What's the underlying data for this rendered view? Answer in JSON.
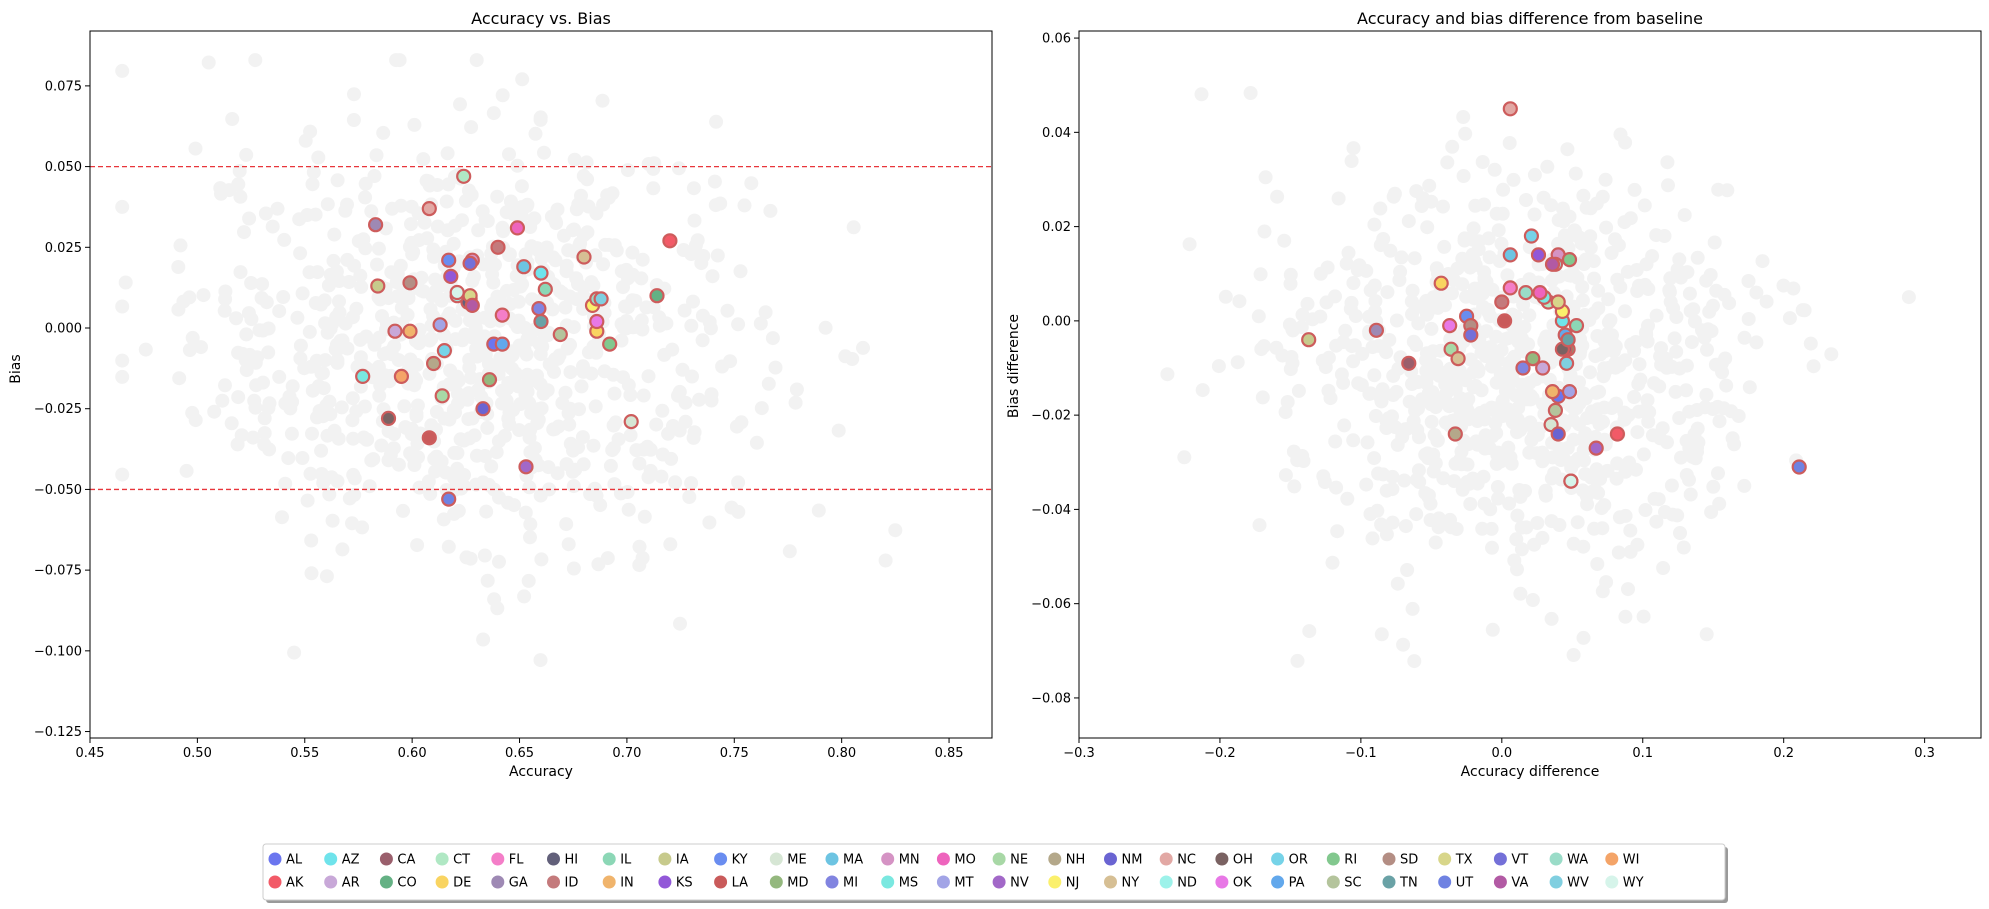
{
  "chart_data": [
    {
      "type": "scatter",
      "title": "Accuracy vs. Bias",
      "xlabel": "Accuracy",
      "ylabel": "Bias",
      "xlim": [
        0.45,
        0.87
      ],
      "ylim": [
        -0.127,
        0.092
      ],
      "xticks": [
        0.45,
        0.5,
        0.55,
        0.6,
        0.65,
        0.7,
        0.75,
        0.8,
        0.85
      ],
      "xtick_labels": [
        "0.45",
        "0.50",
        "0.55",
        "0.60",
        "0.65",
        "0.70",
        "0.75",
        "0.80",
        "0.85"
      ],
      "yticks": [
        -0.125,
        -0.1,
        -0.075,
        -0.05,
        -0.025,
        0.0,
        0.025,
        0.05,
        0.075
      ],
      "ytick_labels": [
        "−0.125",
        "−0.100",
        "−0.075",
        "−0.050",
        "−0.025",
        "0.000",
        "0.025",
        "0.050",
        "0.075"
      ],
      "hlines": [
        0.05,
        -0.05
      ],
      "hline_color": "#e8363b",
      "background_points": {
        "color": "#f2f2f2",
        "count": 900,
        "x_center": 0.63,
        "x_spread": 0.065,
        "y_center": -0.005,
        "y_spread": 0.032,
        "x_range": [
          0.465,
          0.855
        ],
        "y_range": [
          -0.118,
          0.083
        ]
      },
      "series": [
        {
          "state": "AL",
          "x": 0.638,
          "y": -0.005
        },
        {
          "state": "AK",
          "x": 0.72,
          "y": 0.027
        },
        {
          "state": "AZ",
          "x": 0.66,
          "y": 0.017
        },
        {
          "state": "AR",
          "x": 0.592,
          "y": -0.001
        },
        {
          "state": "CA",
          "x": 0.627,
          "y": 0.009
        },
        {
          "state": "CO",
          "x": 0.714,
          "y": 0.01
        },
        {
          "state": "CT",
          "x": 0.624,
          "y": 0.047
        },
        {
          "state": "DE",
          "x": 0.686,
          "y": -0.001
        },
        {
          "state": "FL",
          "x": 0.642,
          "y": 0.004
        },
        {
          "state": "GA",
          "x": 0.583,
          "y": 0.032
        },
        {
          "state": "HI",
          "x": 0.626,
          "y": 0.008
        },
        {
          "state": "ID",
          "x": 0.64,
          "y": 0.025
        },
        {
          "state": "IN",
          "x": 0.599,
          "y": -0.001
        },
        {
          "state": "IL",
          "x": 0.662,
          "y": 0.012
        },
        {
          "state": "IA",
          "x": 0.584,
          "y": 0.013
        },
        {
          "state": "KS",
          "x": 0.618,
          "y": 0.016
        },
        {
          "state": "KY",
          "x": 0.617,
          "y": 0.021
        },
        {
          "state": "LA",
          "x": 0.608,
          "y": -0.034
        },
        {
          "state": "ME",
          "x": 0.702,
          "y": -0.029
        },
        {
          "state": "MD",
          "x": 0.636,
          "y": -0.016
        },
        {
          "state": "MA",
          "x": 0.652,
          "y": 0.019
        },
        {
          "state": "MI",
          "x": 0.659,
          "y": 0.006
        },
        {
          "state": "MN",
          "x": 0.628,
          "y": 0.021
        },
        {
          "state": "MS",
          "x": 0.577,
          "y": -0.015
        },
        {
          "state": "MO",
          "x": 0.649,
          "y": 0.031
        },
        {
          "state": "MT",
          "x": 0.613,
          "y": 0.001
        },
        {
          "state": "NE",
          "x": 0.614,
          "y": -0.021
        },
        {
          "state": "NV",
          "x": 0.653,
          "y": -0.043
        },
        {
          "state": "NH",
          "x": 0.61,
          "y": -0.011
        },
        {
          "state": "NJ",
          "x": 0.684,
          "y": 0.007
        },
        {
          "state": "NM",
          "x": 0.633,
          "y": -0.025
        },
        {
          "state": "NY",
          "x": 0.68,
          "y": 0.022
        },
        {
          "state": "NC",
          "x": 0.608,
          "y": 0.037
        },
        {
          "state": "ND",
          "x": 0.621,
          "y": 0.01
        },
        {
          "state": "OH",
          "x": 0.589,
          "y": -0.028
        },
        {
          "state": "OK",
          "x": 0.686,
          "y": 0.002
        },
        {
          "state": "OR",
          "x": 0.615,
          "y": -0.007
        },
        {
          "state": "PA",
          "x": 0.642,
          "y": -0.005
        },
        {
          "state": "RI",
          "x": 0.692,
          "y": -0.005
        },
        {
          "state": "SC",
          "x": 0.669,
          "y": -0.002
        },
        {
          "state": "SD",
          "x": 0.599,
          "y": 0.014
        },
        {
          "state": "TN",
          "x": 0.66,
          "y": 0.002
        },
        {
          "state": "TX",
          "x": 0.627,
          "y": 0.01
        },
        {
          "state": "UT",
          "x": 0.617,
          "y": -0.053
        },
        {
          "state": "VT",
          "x": 0.627,
          "y": 0.02
        },
        {
          "state": "VA",
          "x": 0.628,
          "y": 0.007
        },
        {
          "state": "WA",
          "x": 0.686,
          "y": 0.009
        },
        {
          "state": "WV",
          "x": 0.688,
          "y": 0.009
        },
        {
          "state": "WI",
          "x": 0.595,
          "y": -0.015
        },
        {
          "state": "WY",
          "x": 0.621,
          "y": 0.011
        }
      ]
    },
    {
      "type": "scatter",
      "title": "Accuracy and bias difference from baseline",
      "xlabel": "Accuracy difference",
      "ylabel": "Bias difference",
      "xlim": [
        -0.3,
        0.34
      ],
      "ylim": [
        -0.0885,
        0.0615
      ],
      "xticks": [
        -0.3,
        -0.2,
        -0.1,
        0.0,
        0.1,
        0.2,
        0.3
      ],
      "xtick_labels": [
        "−0.3",
        "−0.2",
        "−0.1",
        "0.0",
        "0.1",
        "0.2",
        "0.3"
      ],
      "yticks": [
        -0.08,
        -0.06,
        -0.04,
        -0.02,
        0.0,
        0.02,
        0.04,
        0.06
      ],
      "ytick_labels": [
        "−0.08",
        "−0.06",
        "−0.04",
        "−0.02",
        "0.00",
        "0.02",
        "0.04",
        "0.06"
      ],
      "background_points": {
        "color": "#f2f2f2",
        "count": 900,
        "x_center": 0.01,
        "x_spread": 0.085,
        "y_center": -0.012,
        "y_spread": 0.021,
        "x_range": [
          -0.28,
          0.31
        ],
        "y_range": [
          -0.082,
          0.055
        ]
      },
      "series": [
        {
          "state": "AL",
          "x": 0.04,
          "y": -0.016
        },
        {
          "state": "AK",
          "x": 0.082,
          "y": -0.024
        },
        {
          "state": "AZ",
          "x": 0.043,
          "y": 0.0
        },
        {
          "state": "AR",
          "x": 0.029,
          "y": -0.01
        },
        {
          "state": "CA",
          "x": -0.066,
          "y": -0.009
        },
        {
          "state": "CO",
          "x": 0.047,
          "y": -0.006
        },
        {
          "state": "CT",
          "x": 0.033,
          "y": 0.004
        },
        {
          "state": "DE",
          "x": -0.043,
          "y": 0.008
        },
        {
          "state": "FL",
          "x": 0.006,
          "y": 0.007
        },
        {
          "state": "GA",
          "x": -0.089,
          "y": -0.002
        },
        {
          "state": "HI",
          "x": 0.045,
          "y": -0.006
        },
        {
          "state": "ID",
          "x": 0.0,
          "y": 0.004
        },
        {
          "state": "IN",
          "x": 0.036,
          "y": -0.015
        },
        {
          "state": "IL",
          "x": 0.053,
          "y": -0.001
        },
        {
          "state": "IA",
          "x": -0.137,
          "y": -0.004
        },
        {
          "state": "KS",
          "x": 0.026,
          "y": 0.014
        },
        {
          "state": "KY",
          "x": -0.025,
          "y": 0.001
        },
        {
          "state": "LA",
          "x": 0.002,
          "y": 0.0
        },
        {
          "state": "ME",
          "x": 0.035,
          "y": -0.022
        },
        {
          "state": "MD",
          "x": 0.022,
          "y": -0.008
        },
        {
          "state": "MA",
          "x": 0.006,
          "y": 0.014
        },
        {
          "state": "MI",
          "x": 0.015,
          "y": -0.01
        },
        {
          "state": "MN",
          "x": 0.04,
          "y": 0.014
        },
        {
          "state": "MS",
          "x": 0.03,
          "y": 0.005
        },
        {
          "state": "MO",
          "x": 0.027,
          "y": 0.006
        },
        {
          "state": "MT",
          "x": 0.048,
          "y": -0.015
        },
        {
          "state": "NE",
          "x": -0.036,
          "y": -0.006
        },
        {
          "state": "NV",
          "x": 0.067,
          "y": -0.027
        },
        {
          "state": "NH",
          "x": -0.033,
          "y": -0.024
        },
        {
          "state": "NJ",
          "x": 0.043,
          "y": 0.002
        },
        {
          "state": "NM",
          "x": 0.04,
          "y": -0.024
        },
        {
          "state": "NY",
          "x": -0.031,
          "y": -0.008
        },
        {
          "state": "NC",
          "x": 0.006,
          "y": 0.045
        },
        {
          "state": "ND",
          "x": 0.038,
          "y": 0.012
        },
        {
          "state": "OH",
          "x": 0.043,
          "y": -0.006
        },
        {
          "state": "OK",
          "x": -0.037,
          "y": -0.001
        },
        {
          "state": "OR",
          "x": 0.021,
          "y": 0.018
        },
        {
          "state": "PA",
          "x": 0.045,
          "y": -0.003
        },
        {
          "state": "RI",
          "x": 0.048,
          "y": 0.013
        },
        {
          "state": "SC",
          "x": 0.038,
          "y": -0.019
        },
        {
          "state": "SD",
          "x": -0.022,
          "y": -0.001
        },
        {
          "state": "TN",
          "x": 0.047,
          "y": -0.004
        },
        {
          "state": "TX",
          "x": 0.04,
          "y": 0.004
        },
        {
          "state": "UT",
          "x": 0.211,
          "y": -0.031
        },
        {
          "state": "VT",
          "x": -0.022,
          "y": -0.003
        },
        {
          "state": "VA",
          "x": 0.036,
          "y": 0.012
        },
        {
          "state": "WA",
          "x": 0.017,
          "y": 0.006
        },
        {
          "state": "WV",
          "x": 0.046,
          "y": -0.009
        },
        {
          "state": "WI",
          "x": 0.049,
          "y": -0.034
        },
        {
          "state": "WY",
          "x": 0.049,
          "y": -0.034
        }
      ]
    }
  ],
  "legend": {
    "placement": "bottom-center",
    "items": [
      {
        "label": "AL",
        "color": "#6b76ef"
      },
      {
        "label": "AK",
        "color": "#f25a67"
      },
      {
        "label": "AZ",
        "color": "#6fe3eb"
      },
      {
        "label": "AR",
        "color": "#c8a8d8"
      },
      {
        "label": "CA",
        "color": "#9a5f6c"
      },
      {
        "label": "CO",
        "color": "#64b184"
      },
      {
        "label": "CT",
        "color": "#b0e8c4"
      },
      {
        "label": "DE",
        "color": "#f9d461"
      },
      {
        "label": "FL",
        "color": "#f47ec8"
      },
      {
        "label": "GA",
        "color": "#9e89b4"
      },
      {
        "label": "HI",
        "color": "#62607a"
      },
      {
        "label": "ID",
        "color": "#c47a7c"
      },
      {
        "label": "IL",
        "color": "#8cd7b6"
      },
      {
        "label": "IN",
        "color": "#f0b46c"
      },
      {
        "label": "IA",
        "color": "#c7ca8c"
      },
      {
        "label": "KS",
        "color": "#9258d8"
      },
      {
        "label": "KY",
        "color": "#6a8df0"
      },
      {
        "label": "LA",
        "color": "#c95a5a"
      },
      {
        "label": "ME",
        "color": "#d6e6d4"
      },
      {
        "label": "MD",
        "color": "#94b87e"
      },
      {
        "label": "MA",
        "color": "#6dc4e2"
      },
      {
        "label": "MI",
        "color": "#8184e0"
      },
      {
        "label": "MN",
        "color": "#d593c4"
      },
      {
        "label": "MS",
        "color": "#7ae8e0"
      },
      {
        "label": "MO",
        "color": "#ee64bd"
      },
      {
        "label": "MT",
        "color": "#a2a4e6"
      },
      {
        "label": "NE",
        "color": "#a8d8a6"
      },
      {
        "label": "NV",
        "color": "#a268c8"
      },
      {
        "label": "NH",
        "color": "#b4a88a"
      },
      {
        "label": "NJ",
        "color": "#fbf06c"
      },
      {
        "label": "NM",
        "color": "#6a64d2"
      },
      {
        "label": "NY",
        "color": "#d6bf94"
      },
      {
        "label": "NC",
        "color": "#e2a8a4"
      },
      {
        "label": "ND",
        "color": "#9df2ea"
      },
      {
        "label": "OH",
        "color": "#7a6262"
      },
      {
        "label": "OK",
        "color": "#e878e6"
      },
      {
        "label": "OR",
        "color": "#76d3e8"
      },
      {
        "label": "PA",
        "color": "#62a8ec"
      },
      {
        "label": "RI",
        "color": "#82c88e"
      },
      {
        "label": "SC",
        "color": "#b4c49c"
      },
      {
        "label": "SD",
        "color": "#b48e84"
      },
      {
        "label": "TN",
        "color": "#6aa2a6"
      },
      {
        "label": "TX",
        "color": "#d8d68a"
      },
      {
        "label": "UT",
        "color": "#6f82e2"
      },
      {
        "label": "VT",
        "color": "#7470d8"
      },
      {
        "label": "VA",
        "color": "#b25aa4"
      },
      {
        "label": "WA",
        "color": "#9adcc8"
      },
      {
        "label": "WV",
        "color": "#80cfe0"
      },
      {
        "label": "WI",
        "color": "#f4a468"
      },
      {
        "label": "WY",
        "color": "#d6f4ea"
      }
    ]
  },
  "colors": {
    "background_point": "#f2f2f2",
    "marker_edge": "#cd5c5c",
    "threshold_line": "#e8363b"
  }
}
